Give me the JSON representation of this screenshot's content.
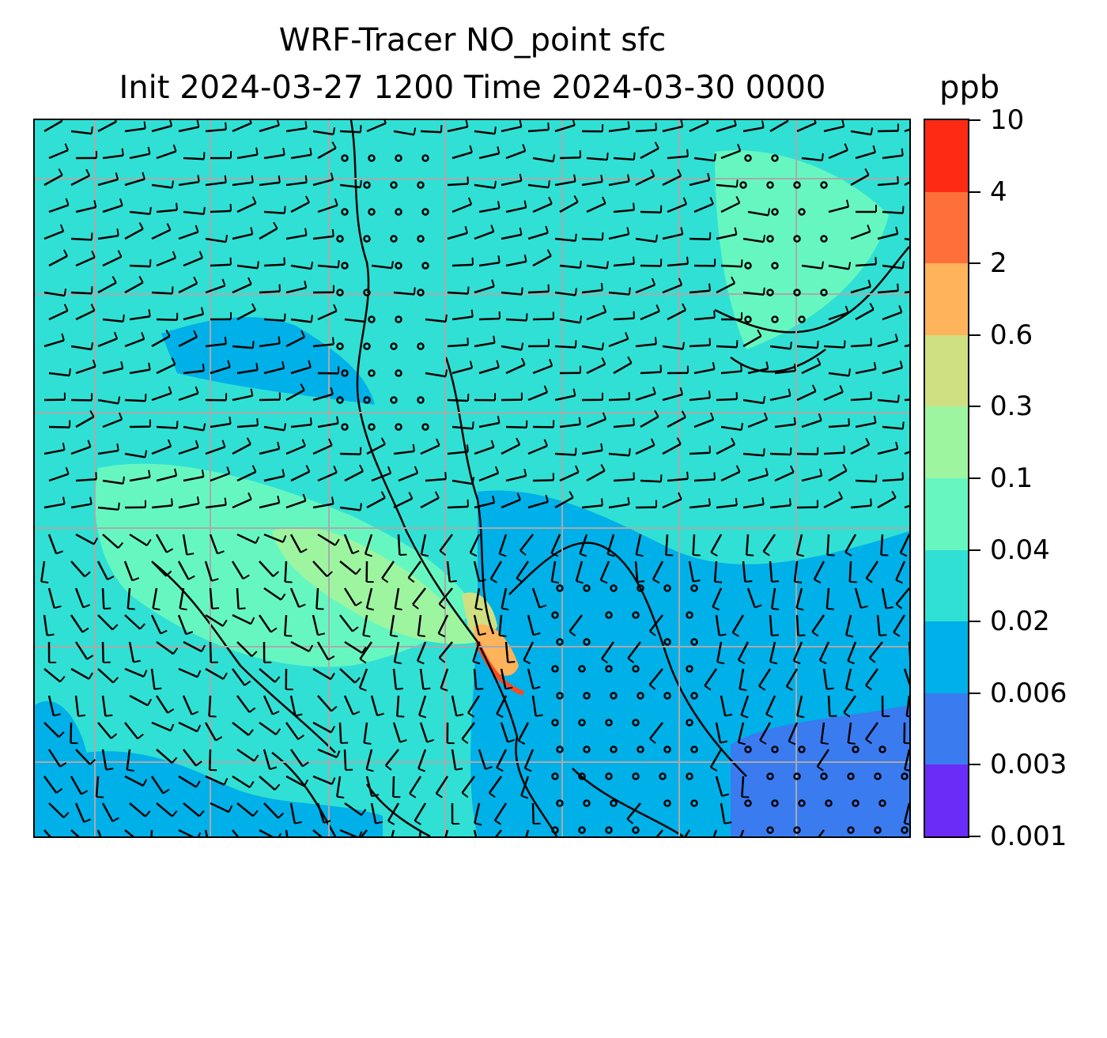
{
  "title": {
    "line1": "WRF-Tracer NO_point sfc",
    "line2": "Init 2024-03-27 1200 Time 2024-03-30 0000"
  },
  "colorbar": {
    "units": "ppb",
    "levels": [
      "0.001",
      "0.003",
      "0.006",
      "0.02",
      "0.04",
      "0.1",
      "0.3",
      "0.6",
      "2",
      "4",
      "10"
    ],
    "colors": [
      "#6a2cf6",
      "#3a7bf0",
      "#00b0e8",
      "#30e0d4",
      "#66f7c1",
      "#9ef5a0",
      "#cfe082",
      "#ffb35a",
      "#ff6f3a",
      "#ff2a14"
    ]
  },
  "map": {
    "background_color": "#30e0d4",
    "gridline_color": "#aaaaaa",
    "plume_color": "#ff4a20"
  }
}
